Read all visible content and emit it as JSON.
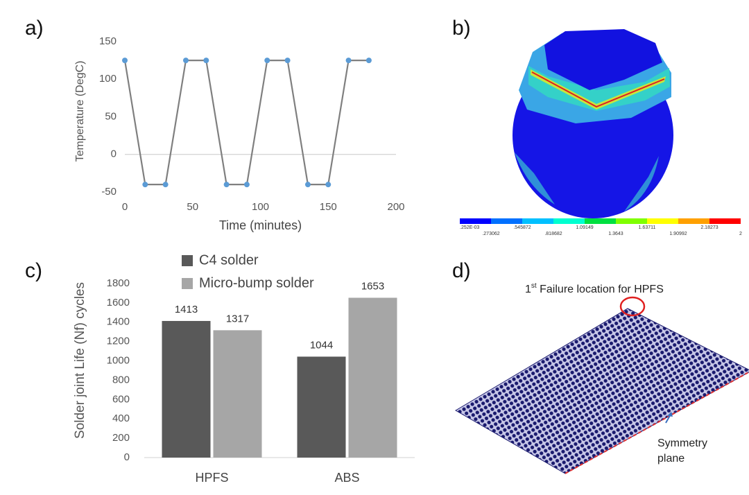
{
  "panel_labels": [
    "a)",
    "b)",
    "c)",
    "d)"
  ],
  "chart_data": [
    {
      "type": "line",
      "x_label": "Time (minutes)",
      "y_label": "Temperature (DegC)",
      "x": [
        0,
        15,
        30,
        45,
        60,
        75,
        90,
        105,
        120,
        135,
        150,
        165,
        180
      ],
      "values": [
        125,
        -40,
        -40,
        125,
        125,
        -40,
        -40,
        125,
        125,
        -40,
        -40,
        125,
        125
      ],
      "color": "#7f7f7f",
      "marker_color": "#5b9bd5",
      "xlim": [
        0,
        200
      ],
      "xticks": [
        0,
        50,
        100,
        150,
        200
      ],
      "ylim": [
        -50,
        150
      ],
      "yticks": [
        -50,
        0,
        50,
        100,
        150
      ]
    },
    {
      "type": "bar",
      "y_label": "Solder joint Life (Nf) cycles",
      "categories": [
        "HPFS",
        "ABS"
      ],
      "series": [
        {
          "name": "C4 solder",
          "color": "#595959",
          "values": [
            1413,
            1044
          ]
        },
        {
          "name": "Micro-bump solder",
          "color": "#a6a6a6",
          "values": [
            1317,
            1653
          ]
        }
      ],
      "ylim": [
        0,
        1800
      ],
      "yticks": [
        0,
        200,
        400,
        600,
        800,
        1000,
        1200,
        1400,
        1600,
        1800
      ]
    }
  ],
  "figure_b": {
    "colorbar_labels": [
      ".252E-03",
      ".273062",
      ".545872",
      ".818682",
      "1.09149",
      "1.3643",
      "1.63711",
      "1.90992",
      "2.18273",
      "2"
    ]
  },
  "figure_d": {
    "failure_note": [
      "1",
      "st",
      " Failure location for HPFS"
    ],
    "symmetry_note": [
      "Symmetry",
      "plane"
    ]
  }
}
